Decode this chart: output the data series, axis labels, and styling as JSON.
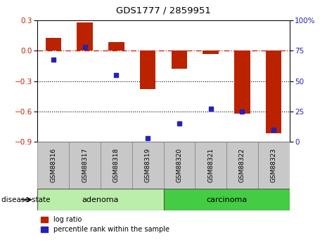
{
  "title": "GDS1777 / 2859951",
  "samples": [
    "GSM88316",
    "GSM88317",
    "GSM88318",
    "GSM88319",
    "GSM88320",
    "GSM88321",
    "GSM88322",
    "GSM88323"
  ],
  "log_ratio": [
    0.13,
    0.28,
    0.09,
    -0.38,
    -0.175,
    -0.03,
    -0.62,
    -0.82
  ],
  "percentile_rank": [
    68,
    78,
    55,
    3,
    15,
    27,
    25,
    10
  ],
  "groups": [
    {
      "label": "adenoma",
      "indices": [
        0,
        1,
        2,
        3
      ],
      "color": "#bbeeaa"
    },
    {
      "label": "carcinoma",
      "indices": [
        4,
        5,
        6,
        7
      ],
      "color": "#44cc44"
    }
  ],
  "group_label": "disease state",
  "bar_color_red": "#bb2200",
  "bar_color_blue": "#2222bb",
  "ylim": [
    -0.9,
    0.3
  ],
  "yticks_left": [
    0.3,
    0.0,
    -0.3,
    -0.6,
    -0.9
  ],
  "yticks_right": [
    100,
    75,
    50,
    25,
    0
  ],
  "right_ylim": [
    0,
    100
  ],
  "dotted_lines": [
    -0.3,
    -0.6
  ],
  "sample_box_color": "#c8c8c8",
  "background_color": "#ffffff",
  "legend_items": [
    "log ratio",
    "percentile rank within the sample"
  ]
}
